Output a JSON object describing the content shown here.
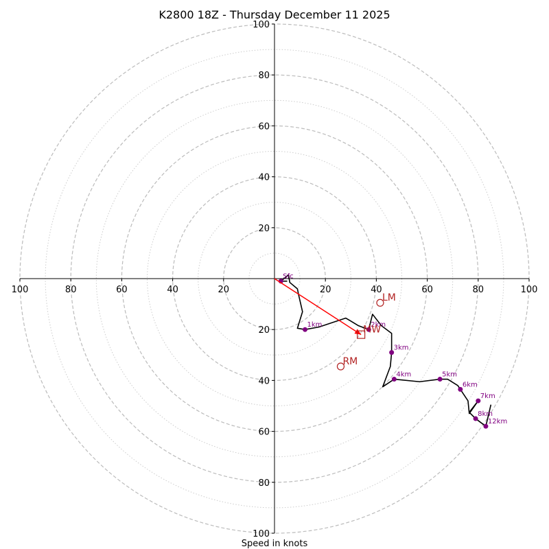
{
  "chart_data": {
    "type": "hodograph",
    "title": "K2800 18Z - Thursday December 11 2025",
    "xlabel": "Speed in knots",
    "max_range": 100,
    "ring_major_step": 20,
    "ring_minor_step": 10,
    "axis_ticks": [
      20,
      40,
      60,
      80,
      100
    ],
    "hodograph_line": [
      [
        5,
        -1
      ],
      [
        2.5,
        -1
      ],
      [
        5.5,
        1.5
      ],
      [
        6,
        -1.5
      ],
      [
        9,
        -4
      ],
      [
        9.5,
        -6.5
      ],
      [
        11,
        -13
      ],
      [
        9,
        -19.5
      ],
      [
        12,
        -20
      ],
      [
        17.5,
        -19
      ],
      [
        28,
        -15.5
      ],
      [
        33,
        -18.5
      ],
      [
        37,
        -20
      ],
      [
        38.5,
        -14
      ],
      [
        42,
        -18.5
      ],
      [
        46,
        -21.5
      ],
      [
        46,
        -29
      ],
      [
        45.5,
        -34.5
      ],
      [
        42.5,
        -42.5
      ],
      [
        47,
        -39.5
      ],
      [
        57,
        -40.5
      ],
      [
        65,
        -39.5
      ],
      [
        68,
        -39.5
      ],
      [
        72,
        -42
      ],
      [
        73,
        -43.5
      ],
      [
        76,
        -48
      ],
      [
        76.5,
        -53
      ],
      [
        80,
        -48
      ],
      [
        76.5,
        -52.5
      ],
      [
        79,
        -55
      ],
      [
        83,
        -58
      ],
      [
        85,
        -49.5
      ]
    ],
    "height_points": [
      {
        "label": "Sfc",
        "u": 2.5,
        "v": -1
      },
      {
        "label": "1km",
        "u": 12,
        "v": -20
      },
      {
        "label": "2km",
        "u": 37,
        "v": -20
      },
      {
        "label": "3km",
        "u": 46,
        "v": -29
      },
      {
        "label": "4km",
        "u": 47,
        "v": -39.5
      },
      {
        "label": "5km",
        "u": 65,
        "v": -39.5
      },
      {
        "label": "6km",
        "u": 73,
        "v": -43.5
      },
      {
        "label": "7km",
        "u": 80,
        "v": -48
      },
      {
        "label": "8km",
        "u": 79,
        "v": -55
      },
      {
        "label": "12km",
        "u": 83,
        "v": -58
      }
    ],
    "storm_motion": {
      "mean_wind": {
        "label": "MW",
        "u": 34,
        "v": -22
      },
      "left_mover": {
        "label": "LM",
        "u": 41.5,
        "v": -9.5
      },
      "right_mover": {
        "label": "RM",
        "u": 26,
        "v": -34.5
      }
    },
    "colors": {
      "hodograph": "#000000",
      "points": "#800080",
      "motion": "#b22222",
      "vector": "#ff0000",
      "grid_major": "#bbbbbb",
      "grid_minor": "#cccccc"
    }
  }
}
